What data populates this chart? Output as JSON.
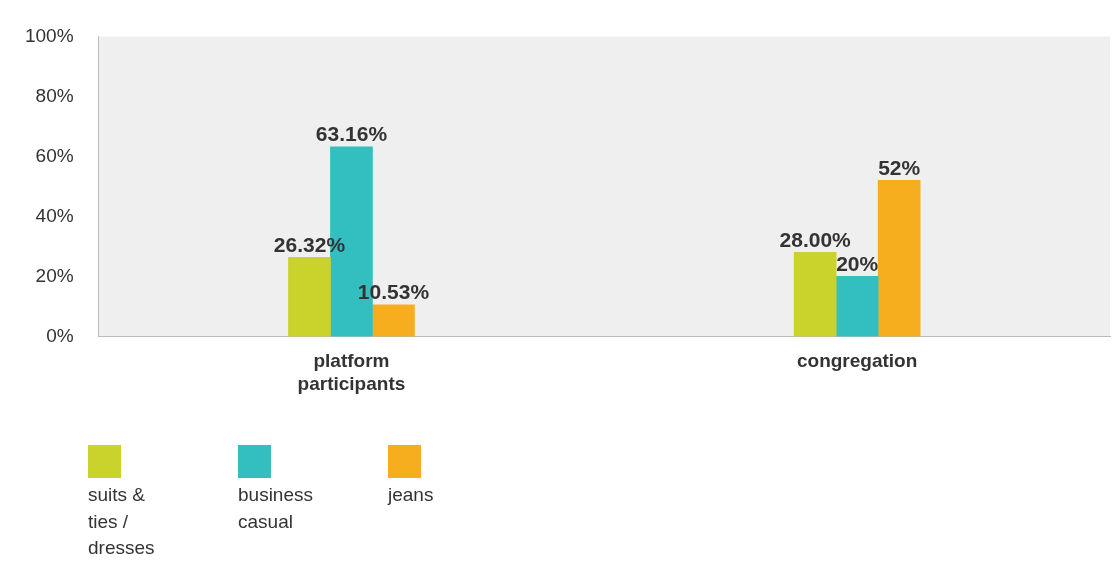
{
  "chart_data": {
    "type": "bar",
    "categories": [
      "platform participants",
      "congregation"
    ],
    "series": [
      {
        "name": "suits & ties / dresses",
        "color": "#c9d32b",
        "values": [
          26.32,
          28.0
        ],
        "value_labels": [
          "26.32%",
          "28.00%"
        ]
      },
      {
        "name": "business casual",
        "color": "#33bfc0",
        "values": [
          63.16,
          20
        ],
        "value_labels": [
          "63.16%",
          "20%"
        ]
      },
      {
        "name": "jeans",
        "color": "#f6ae1f",
        "values": [
          10.53,
          52
        ],
        "value_labels": [
          "10.53%",
          "52%"
        ]
      }
    ],
    "ylim": [
      0,
      100
    ],
    "yticks": [
      {
        "value": 0,
        "label": "0%"
      },
      {
        "value": 20,
        "label": "20%"
      },
      {
        "value": 40,
        "label": "40%"
      },
      {
        "value": 60,
        "label": "60%"
      },
      {
        "value": 80,
        "label": "80%"
      },
      {
        "value": 100,
        "label": "100%"
      }
    ],
    "grid": false,
    "legend": "bottom left"
  }
}
